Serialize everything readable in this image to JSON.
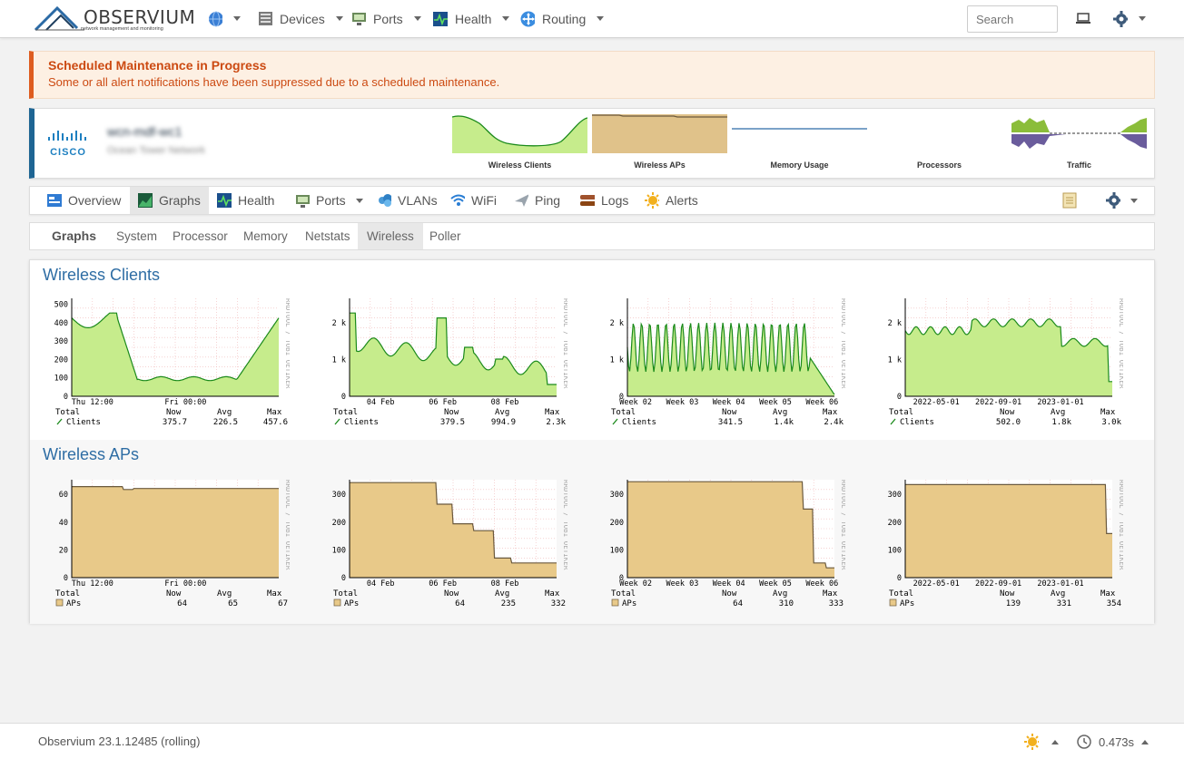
{
  "topnav": {
    "logo_text": "OBSERVIUM",
    "logo_tagline": "network management and monitoring",
    "items": [
      {
        "id": "globe",
        "label": "",
        "icon": "globe-icon"
      },
      {
        "id": "devices",
        "label": "Devices",
        "icon": "server-icon"
      },
      {
        "id": "ports",
        "label": "Ports",
        "icon": "port-icon"
      },
      {
        "id": "health",
        "label": "Health",
        "icon": "heartbeat-icon"
      },
      {
        "id": "routing",
        "label": "Routing",
        "icon": "routing-icon"
      }
    ],
    "search_placeholder": "Search"
  },
  "alert": {
    "title": "Scheduled Maintenance in Progress",
    "message": "Some or all alert notifications have been suppressed due to a scheduled maintenance.",
    "color": "#de5c1f"
  },
  "device": {
    "vendor": "CISCO",
    "name": "wcn-mdf-wc1",
    "location": "Ocean Tower Network",
    "mini_graphs": [
      "Wireless Clients",
      "Wireless APs",
      "Memory Usage",
      "Processors",
      "Traffic"
    ]
  },
  "tabs": [
    {
      "label": "Overview",
      "icon": "overview-icon"
    },
    {
      "label": "Graphs",
      "icon": "graphs-icon",
      "active": true
    },
    {
      "label": "Health",
      "icon": "heartbeat-icon"
    },
    {
      "label": "Ports",
      "icon": "port-icon",
      "dropdown": true
    },
    {
      "label": "VLANs",
      "icon": "vlan-icon"
    },
    {
      "label": "WiFi",
      "icon": "wifi-icon"
    },
    {
      "label": "Ping",
      "icon": "ping-icon"
    },
    {
      "label": "Logs",
      "icon": "logs-icon"
    },
    {
      "label": "Alerts",
      "icon": "alerts-icon"
    }
  ],
  "subtabs": {
    "heading": "Graphs",
    "items": [
      "System",
      "Processor",
      "Memory",
      "Netstats",
      "Wireless",
      "Poller"
    ],
    "active": "Wireless"
  },
  "sections": [
    {
      "title": "Wireless Clients",
      "legend": {
        "total_label": "Total",
        "series_label": "Clients",
        "cols": [
          "Now",
          "Avg",
          "Max"
        ]
      },
      "rrd_label": "RRDTOOL / TOBI OETIKER",
      "graphs": [
        {
          "yticks": [
            "500",
            "400",
            "300",
            "200",
            "100",
            "0"
          ],
          "xticks": [
            "Thu 12:00",
            "Fri 00:00"
          ],
          "now": "375.7",
          "avg": "226.5",
          "max": "457.6"
        },
        {
          "yticks": [
            "2 k",
            "1 k",
            "0"
          ],
          "xticks": [
            "04 Feb",
            "06 Feb",
            "08 Feb"
          ],
          "now": "379.5",
          "avg": "994.9",
          "max": "2.3k"
        },
        {
          "yticks": [
            "2 k",
            "1 k",
            "0"
          ],
          "xticks": [
            "Week 02",
            "Week 03",
            "Week 04",
            "Week 05",
            "Week 06"
          ],
          "now": "341.5",
          "avg": "1.4k",
          "max": "2.4k"
        },
        {
          "yticks": [
            "2 k",
            "1 k",
            "0"
          ],
          "xticks": [
            "2022-05-01",
            "2022-09-01",
            "2023-01-01"
          ],
          "now": "502.0",
          "avg": "1.8k",
          "max": "3.0k"
        }
      ]
    },
    {
      "title": "Wireless APs",
      "legend": {
        "total_label": "Total",
        "series_label": "APs",
        "cols": [
          "Now",
          "Avg",
          "Max"
        ]
      },
      "rrd_label": "RRDTOOL / TOBI OETIKER",
      "graphs": [
        {
          "yticks": [
            "60",
            "40",
            "20",
            "0"
          ],
          "xticks": [
            "Thu 12:00",
            "Fri 00:00"
          ],
          "now": "64",
          "avg": "65",
          "max": "67"
        },
        {
          "yticks": [
            "300",
            "200",
            "100",
            "0"
          ],
          "xticks": [
            "04 Feb",
            "06 Feb",
            "08 Feb"
          ],
          "now": "64",
          "avg": "235",
          "max": "332"
        },
        {
          "yticks": [
            "300",
            "200",
            "100",
            "0"
          ],
          "xticks": [
            "Week 02",
            "Week 03",
            "Week 04",
            "Week 05",
            "Week 06"
          ],
          "now": "64",
          "avg": "310",
          "max": "333"
        },
        {
          "yticks": [
            "300",
            "200",
            "100",
            "0"
          ],
          "xticks": [
            "2022-05-01",
            "2022-09-01",
            "2023-01-01"
          ],
          "now": "139",
          "avg": "331",
          "max": "354"
        }
      ]
    }
  ],
  "footer": {
    "version": "Observium 23.1.12485 (rolling)",
    "timing": "0.473s"
  },
  "colors": {
    "clients_fill": "#c6ec8c",
    "clients_line": "#1b8a1b",
    "aps_fill": "#e8c989",
    "aps_line": "#6b5a3e",
    "link": "#2e6da4"
  }
}
